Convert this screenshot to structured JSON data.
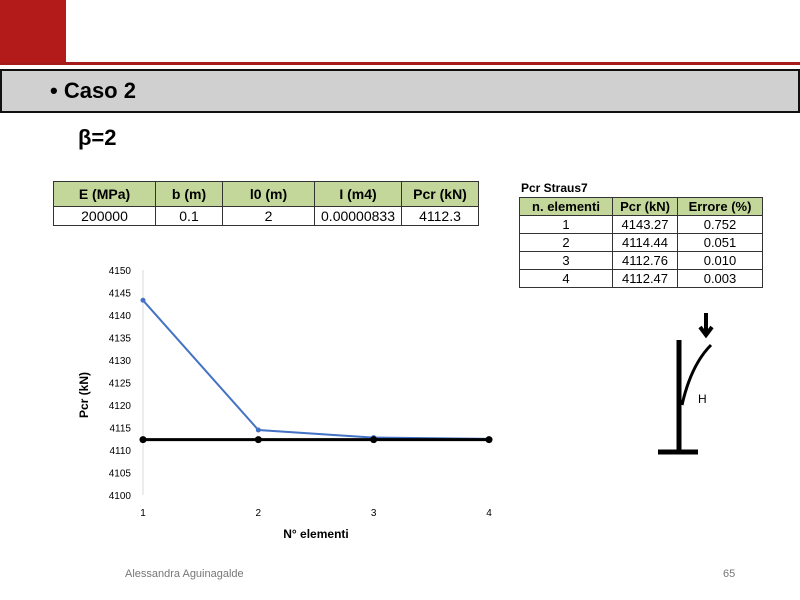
{
  "header": {
    "title": "Caso 2",
    "subtitle": "β=2"
  },
  "params_table": {
    "headers": [
      "E (MPa)",
      "b (m)",
      "l0 (m)",
      "I (m4)",
      "Pcr (kN)"
    ],
    "row": [
      "200000",
      "0.1",
      "2",
      "0.00000833",
      "4112.3"
    ]
  },
  "straus_table": {
    "caption": "Pcr Straus7",
    "headers": [
      "n. elementi",
      "Pcr (kN)",
      "Errore (%)"
    ],
    "rows": [
      [
        "1",
        "4143.27",
        "0.752"
      ],
      [
        "2",
        "4114.44",
        "0.051"
      ],
      [
        "3",
        "4112.76",
        "0.010"
      ],
      [
        "4",
        "4112.47",
        "0.003"
      ]
    ]
  },
  "chart_data": {
    "type": "line",
    "xlabel": "N° elementi",
    "ylabel": "Pcr (kN)",
    "x": [
      1,
      2,
      3,
      4
    ],
    "xlim": [
      1,
      4
    ],
    "ylim": [
      4100,
      4150
    ],
    "yticks": [
      4100,
      4105,
      4110,
      4115,
      4120,
      4125,
      4130,
      4135,
      4140,
      4145,
      4150
    ],
    "series": [
      {
        "values": [
          4143.27,
          4114.44,
          4112.76,
          4112.47
        ],
        "color": "#4472c4"
      },
      {
        "values": [
          4112.3,
          4112.3,
          4112.3,
          4112.3
        ],
        "color": "#000000"
      }
    ],
    "grid": false
  },
  "footer": {
    "author": "Alessandra Aguinagalde",
    "page": "65"
  },
  "colors": {
    "accent": "#a51c1c",
    "table_header": "#c4d79b"
  }
}
